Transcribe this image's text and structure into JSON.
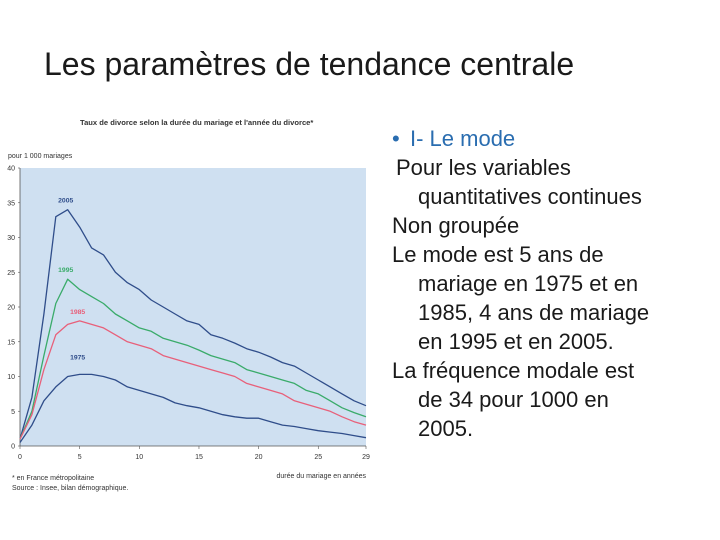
{
  "slide": {
    "title": "Les paramètres de tendance centrale"
  },
  "text": {
    "bullet_heading": "I- Le mode",
    "l1": "Pour les variables",
    "l2": "quantitatives continues",
    "l3": "Non groupée",
    "l4": "Le mode est 5 ans de",
    "l5": "mariage en 1975 et en",
    "l6": "1985, 4 ans de mariage",
    "l7": "en 1995 et en 2005.",
    "l8": "La fréquence modale est",
    "l9": "de 34 pour 1000 en",
    "l10": "2005."
  },
  "colors": {
    "accent": "#2a6db0",
    "plot_bg": "#cfe0f1",
    "s1975": "#2f4d8a",
    "s1985": "#e8607a",
    "s1995": "#3aab6a",
    "s2005": "#2f4d8a"
  },
  "chart_data": {
    "type": "line",
    "title": "Taux de divorce selon la durée du mariage et l'année du divorce*",
    "ylabel": "pour 1 000 mariages",
    "xlabel": "durée du mariage en années",
    "xlim": [
      0,
      29
    ],
    "ylim": [
      0,
      40
    ],
    "xticks": [
      0,
      5,
      10,
      15,
      20,
      25,
      29
    ],
    "yticks": [
      0,
      5,
      10,
      15,
      20,
      25,
      30,
      35,
      40
    ],
    "grid": false,
    "x": [
      0,
      1,
      2,
      3,
      4,
      5,
      6,
      7,
      8,
      9,
      10,
      11,
      12,
      13,
      14,
      15,
      16,
      17,
      18,
      19,
      20,
      21,
      22,
      23,
      24,
      25,
      26,
      27,
      28,
      29
    ],
    "series": [
      {
        "name": "2005",
        "color": "#2f4d8a",
        "values": [
          1,
          7,
          19,
          33,
          34,
          31.5,
          28.5,
          27.5,
          25,
          23.5,
          22.5,
          21,
          20,
          19,
          18,
          17.5,
          16,
          15.5,
          14.8,
          14,
          13.5,
          12.8,
          12,
          11.5,
          10.5,
          9.5,
          8.5,
          7.5,
          6.5,
          5.8
        ]
      },
      {
        "name": "1995",
        "color": "#3aab6a",
        "values": [
          1,
          5,
          13,
          20.5,
          24,
          22.5,
          21.5,
          20.5,
          19,
          18,
          17,
          16.5,
          15.5,
          15,
          14.5,
          13.8,
          13,
          12.5,
          12,
          11,
          10.5,
          10,
          9.5,
          9,
          8,
          7.5,
          6.5,
          5.5,
          4.8,
          4.2
        ]
      },
      {
        "name": "1985",
        "color": "#e8607a",
        "values": [
          1,
          4.5,
          11,
          16,
          17.5,
          18,
          17.5,
          17,
          16,
          15,
          14.5,
          14,
          13,
          12.5,
          12,
          11.5,
          11,
          10.5,
          10,
          9,
          8.5,
          8,
          7.5,
          6.5,
          6,
          5.5,
          5,
          4.2,
          3.5,
          3
        ]
      },
      {
        "name": "1975",
        "color": "#2f4d8a",
        "values": [
          0.5,
          3,
          6.5,
          8.5,
          10,
          10.3,
          10.3,
          10,
          9.5,
          8.5,
          8,
          7.5,
          7,
          6.2,
          5.8,
          5.5,
          5,
          4.5,
          4.2,
          4,
          4,
          3.5,
          3,
          2.8,
          2.5,
          2.2,
          2,
          1.8,
          1.5,
          1.2
        ]
      }
    ],
    "series_labels": [
      "2005",
      "1995",
      "1985",
      "1975"
    ],
    "footnote_1": "* en France métropolitaine",
    "footnote_2": "Source : Insee, bilan démographique."
  }
}
